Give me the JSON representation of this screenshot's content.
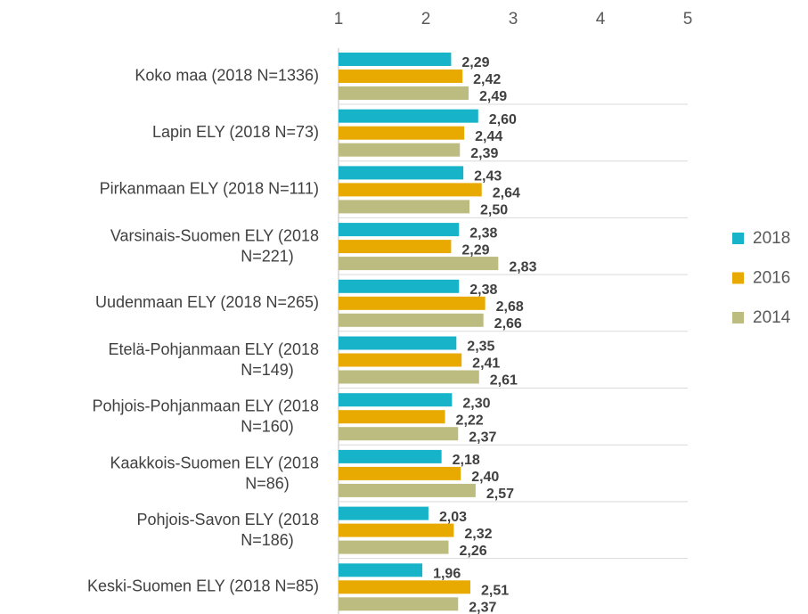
{
  "chart_data": {
    "type": "bar",
    "orientation": "horizontal",
    "categories": [
      "Koko maa (2018 N=1336)",
      "Lapin ELY (2018 N=73)",
      "Pirkanmaan ELY (2018 N=111)",
      "Varsinais-Suomen ELY (2018 N=221)",
      "Uudenmaan ELY (2018 N=265)",
      "Etelä-Pohjanmaan ELY (2018 N=149)",
      "Pohjois-Pohjanmaan ELY (2018 N=160)",
      "Kaakkois-Suomen ELY (2018 N=86)",
      "Pohjois-Savon ELY (2018 N=186)",
      "Keski-Suomen ELY (2018 N=85)"
    ],
    "series": [
      {
        "name": "2018",
        "color": "#17b3c8",
        "values": [
          2.29,
          2.6,
          2.43,
          2.38,
          2.38,
          2.35,
          2.3,
          2.18,
          2.03,
          1.96
        ],
        "value_labels": [
          "2,29",
          "2,60",
          "2,43",
          "2,38",
          "2,38",
          "2,35",
          "2,30",
          "2,18",
          "2,03",
          "1,96"
        ]
      },
      {
        "name": "2016",
        "color": "#e8aa00",
        "values": [
          2.42,
          2.44,
          2.64,
          2.29,
          2.68,
          2.41,
          2.22,
          2.4,
          2.32,
          2.51
        ],
        "value_labels": [
          "2,42",
          "2,44",
          "2,64",
          "2,29",
          "2,68",
          "2,41",
          "2,22",
          "2,40",
          "2,32",
          "2,51"
        ]
      },
      {
        "name": "2014",
        "color": "#bdbc80",
        "values": [
          2.49,
          2.39,
          2.5,
          2.83,
          2.66,
          2.61,
          2.37,
          2.57,
          2.26,
          2.37
        ],
        "value_labels": [
          "2,49",
          "2,39",
          "2,50",
          "2,83",
          "2,66",
          "2,61",
          "2,37",
          "2,57",
          "2,26",
          "2,37"
        ]
      }
    ],
    "xlim": [
      1,
      5
    ],
    "xticks": [
      1,
      2,
      3,
      4,
      5
    ],
    "legend": "right"
  }
}
